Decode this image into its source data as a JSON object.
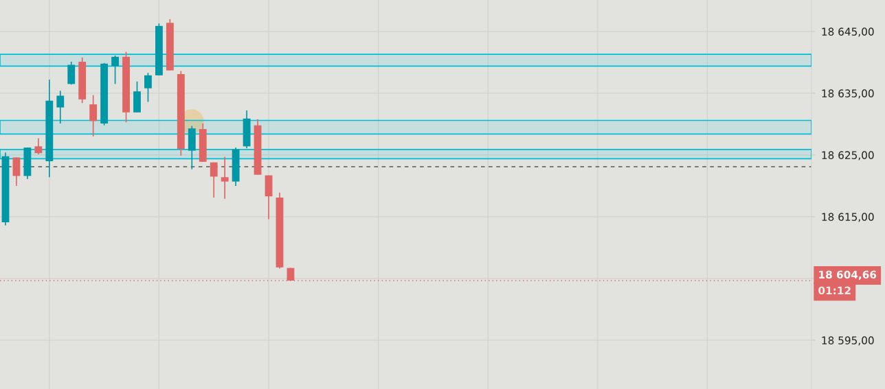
{
  "chart_data": {
    "type": "candlestick",
    "categories": [
      null,
      null,
      null,
      null,
      null,
      null,
      null,
      null,
      null,
      null,
      null,
      null,
      null,
      null,
      null,
      null,
      null,
      null,
      null,
      null,
      null,
      null,
      null,
      null,
      null,
      null,
      null,
      null,
      null,
      null,
      null,
      null,
      null,
      null,
      null,
      null,
      null,
      null,
      null,
      null,
      null,
      null,
      null,
      null,
      null,
      null,
      null,
      null,
      null,
      null,
      null,
      null,
      null,
      null,
      null,
      null,
      null,
      null,
      null,
      null,
      null,
      null,
      null,
      null,
      null,
      null,
      null,
      null,
      null,
      null,
      null,
      null,
      null,
      null
    ],
    "ohlc": [
      [
        18614.1,
        18625.4,
        18613.6,
        18624.8
      ],
      [
        18624.6,
        18624.6,
        18620.0,
        18621.6
      ],
      [
        18621.6,
        18626.2,
        18621.1,
        18626.2
      ],
      [
        18626.4,
        18627.7,
        18625.1,
        18625.3
      ],
      [
        18624.0,
        18637.2,
        18621.4,
        18633.8
      ],
      [
        18632.7,
        18635.4,
        18630.1,
        18634.6
      ],
      [
        18636.5,
        18640.1,
        18636.4,
        18639.6
      ],
      [
        18640.1,
        18640.8,
        18633.4,
        18634.0
      ],
      [
        18633.2,
        18634.7,
        18628.0,
        18630.5
      ],
      [
        18630.1,
        18639.9,
        18629.8,
        18639.8
      ],
      [
        18639.4,
        18641.1,
        18636.5,
        18640.9
      ],
      [
        18640.9,
        18641.7,
        18630.3,
        18631.9
      ],
      [
        18631.9,
        18636.9,
        18631.9,
        18635.3
      ],
      [
        18635.8,
        18638.3,
        18633.6,
        18637.9
      ],
      [
        18637.9,
        18646.3,
        18637.9,
        18645.9
      ],
      [
        18646.4,
        18647.0,
        18638.7,
        18638.7
      ],
      [
        18638.1,
        18638.6,
        18624.9,
        18626.0
      ],
      [
        18625.7,
        18629.7,
        18622.7,
        18629.3
      ],
      [
        18629.2,
        18630.1,
        18623.9,
        18623.9
      ],
      [
        18623.8,
        18623.8,
        18618.1,
        18621.5
      ],
      [
        18621.4,
        18624.7,
        18617.9,
        18620.7
      ],
      [
        18620.7,
        18626.2,
        18620.0,
        18625.9
      ],
      [
        18626.4,
        18632.2,
        18626.1,
        18630.9
      ],
      [
        18629.8,
        18630.8,
        18621.8,
        18621.8
      ],
      [
        18621.7,
        18621.7,
        18614.6,
        18618.3
      ],
      [
        18618.1,
        18618.9,
        18606.6,
        18606.8
      ],
      [
        18606.7,
        18606.7,
        18604.66,
        18604.66
      ],
      null,
      null,
      null,
      null,
      null,
      null,
      null,
      null,
      null,
      null,
      null,
      null,
      null,
      null,
      null,
      null,
      null,
      null,
      null,
      null,
      null,
      null,
      null,
      null,
      null,
      null,
      null,
      null,
      null,
      null,
      null,
      null,
      null,
      null,
      null,
      null,
      null,
      null,
      null,
      null,
      null,
      null,
      null,
      null,
      null,
      null,
      null
    ],
    "colors": [
      "#0097a7",
      "#e06666",
      "#0097a7",
      "#e06666",
      "#0097a7",
      "#0097a7",
      "#0097a7",
      "#e06666",
      "#e06666",
      "#0097a7",
      "#0097a7",
      "#e06666",
      "#0097a7",
      "#0097a7",
      "#0097a7",
      "#e06666",
      "#e06666",
      "#0097a7",
      "#e06666",
      "#e06666",
      "#e06666",
      "#0097a7",
      "#0097a7",
      "#e06666",
      "#e06666",
      "#e06666",
      "#e06666",
      null,
      null,
      null,
      null,
      null,
      null,
      null,
      null,
      null,
      null,
      null,
      null,
      null,
      null,
      null,
      null,
      null,
      null,
      null,
      null,
      null,
      null,
      null,
      null,
      null,
      null,
      null,
      null,
      null,
      null,
      null,
      null,
      null,
      null,
      null,
      null,
      null,
      null,
      null,
      null,
      null,
      null,
      null,
      null,
      null,
      null,
      null
    ],
    "ylim": [
      18587.1,
      18650.1
    ],
    "yticks": [
      {
        "value": 18595,
        "label": "18 595,00"
      },
      {
        "value": 18605,
        "label": null
      },
      {
        "value": 18615,
        "label": "18 615,00"
      },
      {
        "value": 18625,
        "label": "18 625,00"
      },
      {
        "value": 18635,
        "label": "18 635,00"
      },
      {
        "value": 18645,
        "label": "18 645,00"
      }
    ],
    "tick_labels": "y",
    "grid": true,
    "ref_lines": [
      {
        "axis": "y",
        "value": 18623.1,
        "label": null,
        "color": "#555555",
        "line_style": "dashed"
      },
      {
        "axis": "y",
        "value": 18604.66,
        "label": "18 604,66",
        "color": "#e06666",
        "line_style": "dotted"
      }
    ],
    "bands": [
      {
        "axis": "y",
        "from": 18639.4,
        "to": 18641.3,
        "label": null,
        "color": "#00bcd4"
      },
      {
        "axis": "y",
        "from": 18628.4,
        "to": 18630.6,
        "label": null,
        "color": "#00bcd4"
      },
      {
        "axis": "y",
        "from": 18624.4,
        "to": 18625.9,
        "label": null,
        "color": "#00bcd4"
      }
    ],
    "annotations": [
      "01:12"
    ]
  }
}
